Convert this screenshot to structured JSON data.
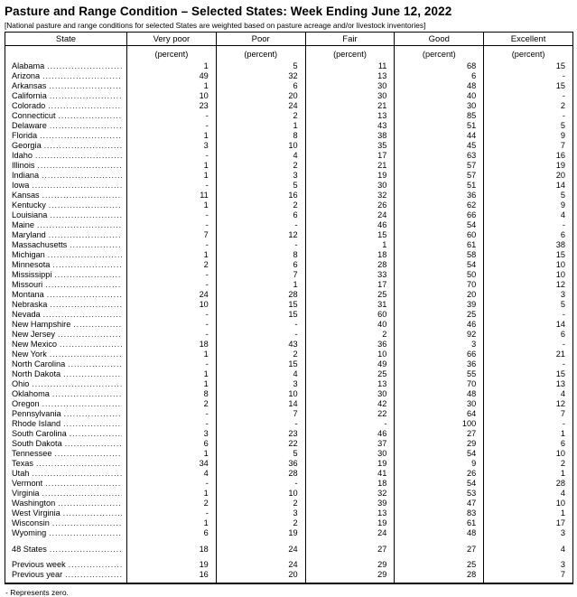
{
  "title": "Pasture and Range Condition – Selected States: Week Ending June 12, 2022",
  "subtitle": "[National pasture and range conditions for selected States are weighted based on pasture acreage and/or livestock inventories]",
  "columns": [
    "State",
    "Very poor",
    "Poor",
    "Fair",
    "Good",
    "Excellent"
  ],
  "unit_label": "(percent)",
  "footnote": "- Represents zero.",
  "states": [
    {
      "state": "Alabama",
      "values": [
        "1",
        "5",
        "11",
        "68",
        "15"
      ]
    },
    {
      "state": "Arizona",
      "values": [
        "49",
        "32",
        "13",
        "6",
        "-"
      ]
    },
    {
      "state": "Arkansas",
      "values": [
        "1",
        "6",
        "30",
        "48",
        "15"
      ]
    },
    {
      "state": "California",
      "values": [
        "10",
        "20",
        "30",
        "40",
        "-"
      ]
    },
    {
      "state": "Colorado",
      "values": [
        "23",
        "24",
        "21",
        "30",
        "2"
      ]
    },
    {
      "state": "Connecticut",
      "values": [
        "-",
        "2",
        "13",
        "85",
        "-"
      ]
    },
    {
      "state": "Delaware",
      "values": [
        "-",
        "1",
        "43",
        "51",
        "5"
      ]
    },
    {
      "state": "Florida",
      "values": [
        "1",
        "8",
        "38",
        "44",
        "9"
      ]
    },
    {
      "state": "Georgia",
      "values": [
        "3",
        "10",
        "35",
        "45",
        "7"
      ]
    },
    {
      "state": "Idaho",
      "values": [
        "-",
        "4",
        "17",
        "63",
        "16"
      ]
    },
    {
      "state": "Illinois",
      "values": [
        "1",
        "2",
        "21",
        "57",
        "19"
      ]
    },
    {
      "state": "Indiana",
      "values": [
        "1",
        "3",
        "19",
        "57",
        "20"
      ]
    },
    {
      "state": "Iowa",
      "values": [
        "-",
        "5",
        "30",
        "51",
        "14"
      ]
    },
    {
      "state": "Kansas",
      "values": [
        "11",
        "16",
        "32",
        "36",
        "5"
      ]
    },
    {
      "state": "Kentucky",
      "values": [
        "1",
        "2",
        "26",
        "62",
        "9"
      ]
    },
    {
      "state": "Louisiana",
      "values": [
        "-",
        "6",
        "24",
        "66",
        "4"
      ]
    },
    {
      "state": "Maine",
      "values": [
        "-",
        "-",
        "46",
        "54",
        "-"
      ]
    },
    {
      "state": "Maryland",
      "values": [
        "7",
        "12",
        "15",
        "60",
        "6"
      ]
    },
    {
      "state": "Massachusetts",
      "values": [
        "-",
        "-",
        "1",
        "61",
        "38"
      ]
    },
    {
      "state": "Michigan",
      "values": [
        "1",
        "8",
        "18",
        "58",
        "15"
      ]
    },
    {
      "state": "Minnesota",
      "values": [
        "2",
        "6",
        "28",
        "54",
        "10"
      ]
    },
    {
      "state": "Mississippi",
      "values": [
        "-",
        "7",
        "33",
        "50",
        "10"
      ]
    },
    {
      "state": "Missouri",
      "values": [
        "-",
        "1",
        "17",
        "70",
        "12"
      ]
    },
    {
      "state": "Montana",
      "values": [
        "24",
        "28",
        "25",
        "20",
        "3"
      ]
    },
    {
      "state": "Nebraska",
      "values": [
        "10",
        "15",
        "31",
        "39",
        "5"
      ]
    },
    {
      "state": "Nevada",
      "values": [
        "-",
        "15",
        "60",
        "25",
        "-"
      ]
    },
    {
      "state": "New Hampshire",
      "values": [
        "-",
        "-",
        "40",
        "46",
        "14"
      ]
    },
    {
      "state": "New Jersey",
      "values": [
        "-",
        "-",
        "2",
        "92",
        "6"
      ]
    },
    {
      "state": "New Mexico",
      "values": [
        "18",
        "43",
        "36",
        "3",
        "-"
      ]
    },
    {
      "state": "New York",
      "values": [
        "1",
        "2",
        "10",
        "66",
        "21"
      ]
    },
    {
      "state": "North Carolina",
      "values": [
        "-",
        "15",
        "49",
        "36",
        "-"
      ]
    },
    {
      "state": "North Dakota",
      "values": [
        "1",
        "4",
        "25",
        "55",
        "15"
      ]
    },
    {
      "state": "Ohio",
      "values": [
        "1",
        "3",
        "13",
        "70",
        "13"
      ]
    },
    {
      "state": "Oklahoma",
      "values": [
        "8",
        "10",
        "30",
        "48",
        "4"
      ]
    },
    {
      "state": "Oregon",
      "values": [
        "2",
        "14",
        "42",
        "30",
        "12"
      ]
    },
    {
      "state": "Pennsylvania",
      "values": [
        "-",
        "7",
        "22",
        "64",
        "7"
      ]
    },
    {
      "state": "Rhode Island",
      "values": [
        "-",
        "-",
        "-",
        "100",
        "-"
      ]
    },
    {
      "state": "South Carolina",
      "values": [
        "3",
        "23",
        "46",
        "27",
        "1"
      ]
    },
    {
      "state": "South Dakota",
      "values": [
        "6",
        "22",
        "37",
        "29",
        "6"
      ]
    },
    {
      "state": "Tennessee",
      "values": [
        "1",
        "5",
        "30",
        "54",
        "10"
      ]
    },
    {
      "state": "Texas",
      "values": [
        "34",
        "36",
        "19",
        "9",
        "2"
      ]
    },
    {
      "state": "Utah",
      "values": [
        "4",
        "28",
        "41",
        "26",
        "1"
      ]
    },
    {
      "state": "Vermont",
      "values": [
        "-",
        "-",
        "18",
        "54",
        "28"
      ]
    },
    {
      "state": "Virginia",
      "values": [
        "1",
        "10",
        "32",
        "53",
        "4"
      ]
    },
    {
      "state": "Washington",
      "values": [
        "2",
        "2",
        "39",
        "47",
        "10"
      ]
    },
    {
      "state": "West Virginia",
      "values": [
        "-",
        "3",
        "13",
        "83",
        "1"
      ]
    },
    {
      "state": "Wisconsin",
      "values": [
        "1",
        "2",
        "19",
        "61",
        "17"
      ]
    },
    {
      "state": "Wyoming",
      "values": [
        "6",
        "19",
        "24",
        "48",
        "3"
      ]
    }
  ],
  "summary": {
    "state": "48 States",
    "values": [
      "18",
      "24",
      "27",
      "27",
      "4"
    ]
  },
  "comparisons": [
    {
      "state": "Previous week",
      "values": [
        "19",
        "24",
        "29",
        "25",
        "3"
      ]
    },
    {
      "state": "Previous year",
      "values": [
        "16",
        "20",
        "29",
        "28",
        "7"
      ]
    }
  ]
}
